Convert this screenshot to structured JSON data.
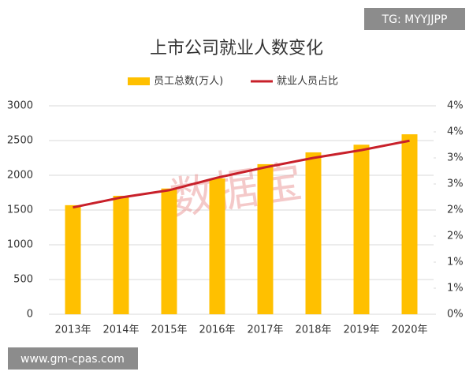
{
  "chart_data": {
    "type": "bar_line",
    "title": "上市公司就业人数变化",
    "categories": [
      "2013年",
      "2014年",
      "2015年",
      "2016年",
      "2017年",
      "2018年",
      "2019年",
      "2020年"
    ],
    "series": [
      {
        "name": "员工总数(万人)",
        "type": "bar",
        "color": "#ffc000",
        "values": [
          1570,
          1705,
          1810,
          1955,
          2160,
          2330,
          2440,
          2590
        ]
      },
      {
        "name": "就业人员占比",
        "type": "line",
        "axis": "y2",
        "color": "#c8202a",
        "values": [
          2.05,
          2.24,
          2.38,
          2.62,
          2.82,
          3.0,
          3.15,
          3.33
        ]
      }
    ],
    "ylim": [
      0,
      3000
    ],
    "yticks": [
      0,
      500,
      1000,
      1500,
      2000,
      2500,
      3000
    ],
    "y2lim": [
      0,
      4
    ],
    "y2ticks": [
      {
        "value": 0,
        "label": "0%"
      },
      {
        "value": 0.5,
        "label": "1%"
      },
      {
        "value": 1,
        "label": "1%"
      },
      {
        "value": 1.5,
        "label": "2%"
      },
      {
        "value": 2,
        "label": "2%"
      },
      {
        "value": 2.5,
        "label": "3%"
      },
      {
        "value": 3,
        "label": "3%"
      },
      {
        "value": 3.5,
        "label": "4%"
      },
      {
        "value": 4,
        "label": "4%"
      }
    ],
    "grid": true,
    "legend": "top",
    "watermarks": [
      "数据宝",
      "TG: MYYJJPP",
      "www.gm-cpas.com"
    ]
  }
}
